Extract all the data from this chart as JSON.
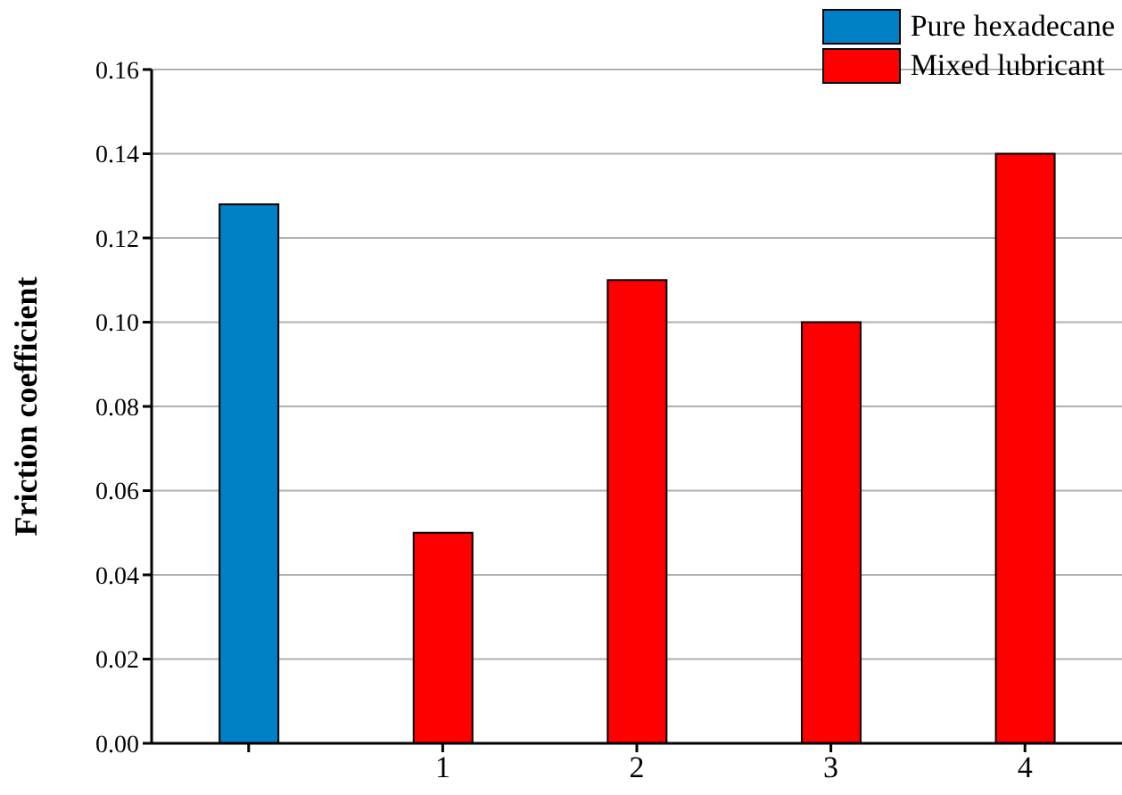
{
  "chart_data": {
    "type": "bar",
    "ylabel": "Friction coefficient",
    "categories": [
      null,
      "1",
      "2",
      "3",
      "4"
    ],
    "series": [
      {
        "name": "Pure hexadecane",
        "color": "#0080c6",
        "values": [
          0.128,
          null,
          null,
          null,
          null
        ]
      },
      {
        "name": "Mixed lubricant",
        "color": "#ff0000",
        "values": [
          null,
          0.05,
          0.11,
          0.1,
          0.14
        ]
      }
    ],
    "ylim": [
      0,
      0.16
    ],
    "yticks": [
      {
        "value": 0,
        "label": "0.00"
      },
      0.02,
      0.04,
      0.06,
      0.08,
      {
        "value": 0.1,
        "label": "0.10"
      },
      0.12,
      0.14,
      0.16
    ],
    "grid": "y",
    "legend": "top right"
  }
}
